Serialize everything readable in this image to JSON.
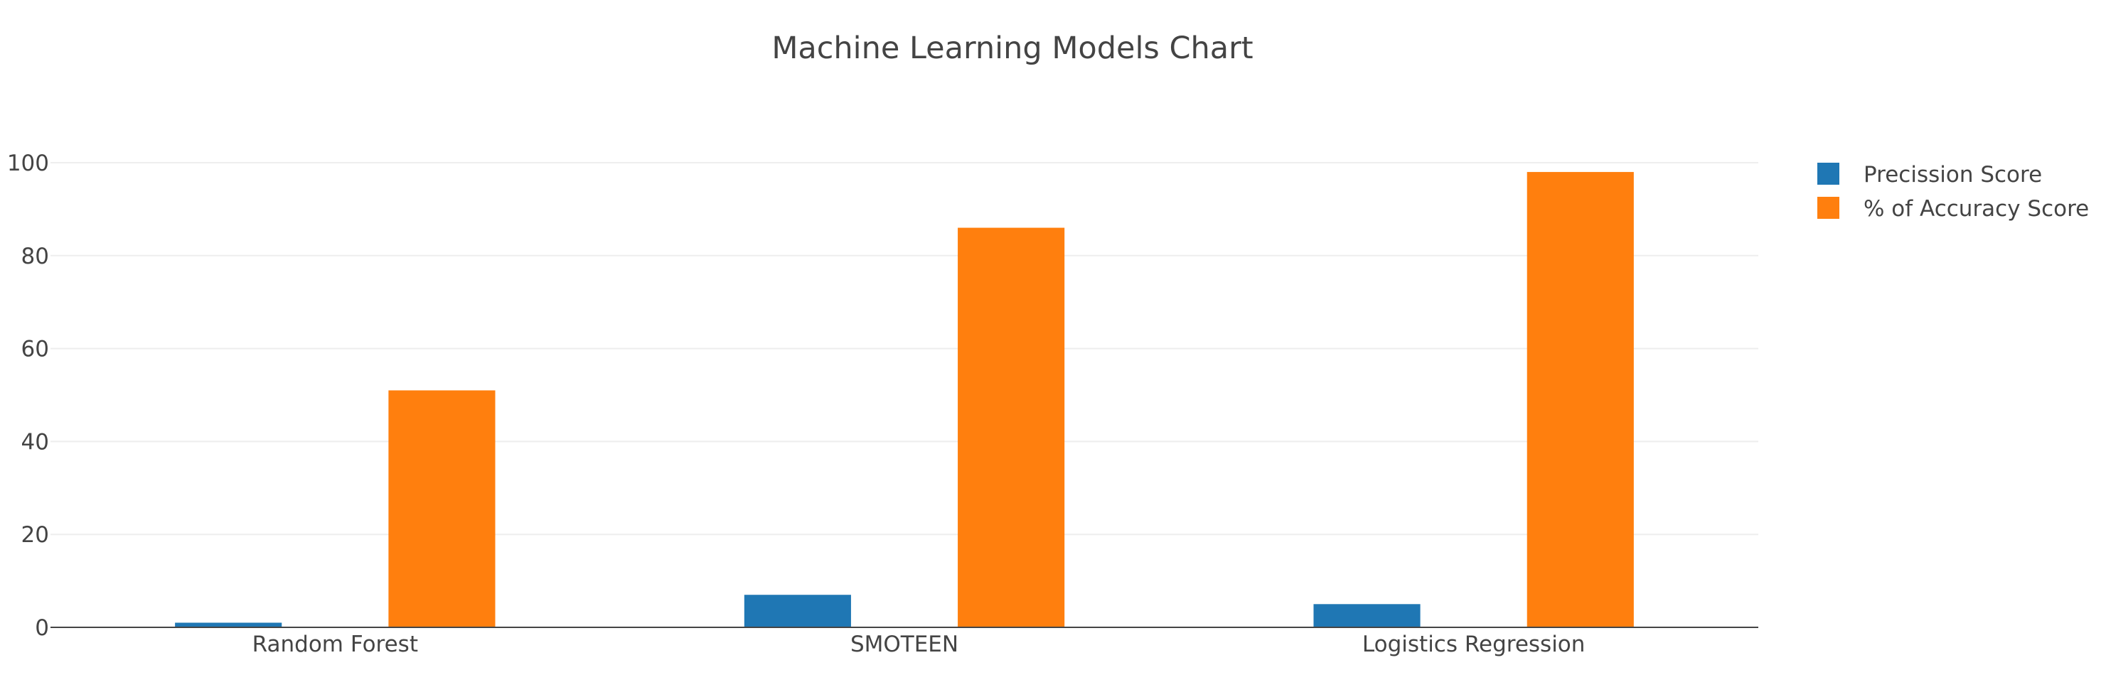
{
  "chart_data": {
    "type": "bar",
    "title": "Machine Learning Models Chart",
    "xlabel": "",
    "ylabel": "",
    "categories": [
      "Random Forest",
      "SMOTEEN",
      "Logistics Regression"
    ],
    "series": [
      {
        "name": "Precission Score",
        "values": [
          1,
          7,
          5
        ],
        "color": "#1f77b4"
      },
      {
        "name": "% of Accuracy Score",
        "values": [
          51,
          86,
          98
        ],
        "color": "#ff7f0e"
      }
    ],
    "ylim": [
      0,
      100
    ],
    "yticks": [
      0,
      20,
      40,
      60,
      80,
      100
    ],
    "grid": true,
    "legend_position": "top-right"
  }
}
